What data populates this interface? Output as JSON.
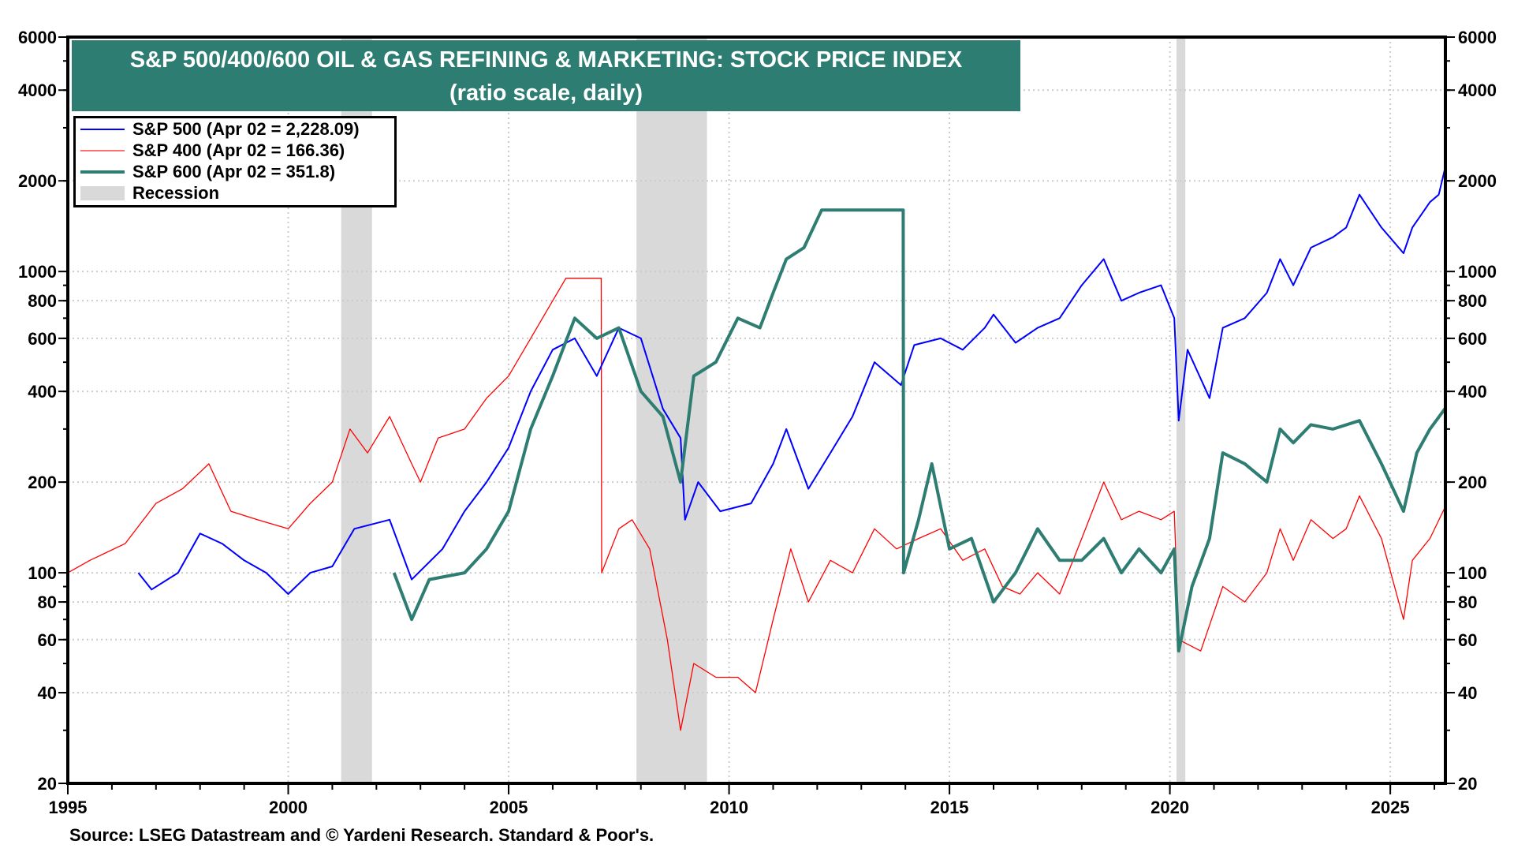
{
  "chart_data": {
    "type": "line",
    "title": "S&P 500/400/600 OIL & GAS REFINING & MARKETING: STOCK PRICE INDEX",
    "subtitle": "(ratio scale, daily)",
    "y_scale": "log",
    "ylim": [
      20,
      6000
    ],
    "xlim": [
      1995,
      2026.25
    ],
    "y_ticks": [
      20,
      40,
      60,
      80,
      100,
      200,
      400,
      600,
      800,
      1000,
      2000,
      4000,
      6000
    ],
    "x_ticks": [
      1995,
      2000,
      2005,
      2010,
      2015,
      2020,
      2025
    ],
    "grid": true,
    "legend_position": "top-left",
    "recessions": [
      [
        2001.2,
        2001.9
      ],
      [
        2007.9,
        2009.5
      ],
      [
        2020.15,
        2020.35
      ]
    ],
    "recession_label": "Recession",
    "recession_color": "#d9d9d9",
    "series": [
      {
        "name": "S&P 500 (Apr 02 = 2,228.09)",
        "color": "#0000ff",
        "width": 2,
        "x": [
          1996.6,
          1996.9,
          1997.5,
          1998.0,
          1998.5,
          1999.0,
          1999.5,
          2000.0,
          2000.5,
          2001.0,
          2001.5,
          2002.3,
          2002.8,
          2003.5,
          2004.0,
          2004.5,
          2005.0,
          2005.5,
          2006.0,
          2006.5,
          2007.0,
          2007.5,
          2008.0,
          2008.5,
          2008.9,
          2009.0,
          2009.3,
          2009.8,
          2010.5,
          2011.0,
          2011.3,
          2011.8,
          2012.3,
          2012.8,
          2013.3,
          2013.9,
          2014.2,
          2014.8,
          2015.3,
          2015.8,
          2016.0,
          2016.5,
          2017.0,
          2017.5,
          2018.0,
          2018.5,
          2018.9,
          2019.3,
          2019.8,
          2020.1,
          2020.2,
          2020.4,
          2020.9,
          2021.2,
          2021.7,
          2022.2,
          2022.5,
          2022.8,
          2023.2,
          2023.7,
          2024.0,
          2024.3,
          2024.8,
          2025.3,
          2025.5,
          2025.9,
          2026.1,
          2026.25
        ],
        "values": [
          100,
          88,
          100,
          135,
          125,
          110,
          100,
          85,
          100,
          105,
          140,
          150,
          95,
          120,
          160,
          200,
          260,
          400,
          550,
          600,
          450,
          650,
          600,
          350,
          280,
          150,
          200,
          160,
          170,
          230,
          300,
          190,
          250,
          330,
          500,
          420,
          570,
          600,
          550,
          650,
          720,
          580,
          650,
          700,
          900,
          1100,
          800,
          850,
          900,
          700,
          320,
          550,
          380,
          650,
          700,
          850,
          1100,
          900,
          1200,
          1300,
          1400,
          1800,
          1400,
          1150,
          1400,
          1700,
          1800,
          2228
        ]
      },
      {
        "name": "S&P 400 (Apr 02 = 166.36)",
        "color": "#ff0000",
        "width": 1.3,
        "x": [
          1995.0,
          1995.5,
          1996.3,
          1997.0,
          1997.6,
          1998.2,
          1998.7,
          1999.3,
          2000.0,
          2000.5,
          2001.0,
          2001.4,
          2001.8,
          2002.3,
          2002.8,
          2003.0,
          2003.4,
          2004.0,
          2004.5,
          2005.0,
          2005.5,
          2006.0,
          2006.3,
          2006.7,
          2007.1,
          2007.11,
          2007.5,
          2007.8,
          2008.2,
          2008.6,
          2008.9,
          2009.2,
          2009.7,
          2010.2,
          2010.6,
          2011.0,
          2011.4,
          2011.8,
          2012.3,
          2012.8,
          2013.3,
          2013.8,
          2014.3,
          2014.8,
          2015.3,
          2015.8,
          2016.2,
          2016.6,
          2017.0,
          2017.5,
          2018.0,
          2018.5,
          2018.9,
          2019.3,
          2019.8,
          2020.1,
          2020.2,
          2020.7,
          2021.2,
          2021.7,
          2022.2,
          2022.5,
          2022.8,
          2023.2,
          2023.7,
          2024.0,
          2024.3,
          2024.8,
          2025.3,
          2025.5,
          2025.9,
          2026.25
        ],
        "values": [
          100,
          110,
          125,
          170,
          190,
          230,
          160,
          150,
          140,
          170,
          200,
          300,
          250,
          330,
          230,
          200,
          280,
          300,
          380,
          450,
          600,
          800,
          950,
          950,
          950,
          100,
          140,
          150,
          120,
          60,
          30,
          50,
          45,
          45,
          40,
          70,
          120,
          80,
          110,
          100,
          140,
          120,
          130,
          140,
          110,
          120,
          90,
          85,
          100,
          85,
          130,
          200,
          150,
          160,
          150,
          160,
          60,
          55,
          90,
          80,
          100,
          140,
          110,
          150,
          130,
          140,
          180,
          130,
          70,
          110,
          130,
          166
        ]
      },
      {
        "name": "S&P 600 (Apr 02 = 351.8)",
        "color": "#2e7d72",
        "width": 4,
        "x": [
          2002.4,
          2002.8,
          2003.2,
          2004.0,
          2004.5,
          2005.0,
          2005.5,
          2006.0,
          2006.5,
          2007.0,
          2007.5,
          2008.0,
          2008.5,
          2008.9,
          2009.2,
          2009.7,
          2010.2,
          2010.7,
          2011.0,
          2011.3,
          2011.7,
          2012.1,
          2012.3,
          2013.95,
          2013.96,
          2014.3,
          2014.6,
          2015.0,
          2015.5,
          2016.0,
          2016.5,
          2017.0,
          2017.5,
          2018.0,
          2018.5,
          2018.9,
          2019.3,
          2019.8,
          2020.1,
          2020.2,
          2020.5,
          2020.9,
          2021.2,
          2021.7,
          2022.2,
          2022.5,
          2022.8,
          2023.2,
          2023.7,
          2024.3,
          2024.8,
          2025.3,
          2025.6,
          2025.9,
          2026.25
        ],
        "values": [
          100,
          70,
          95,
          100,
          120,
          160,
          300,
          450,
          700,
          600,
          650,
          400,
          330,
          200,
          450,
          500,
          700,
          650,
          850,
          1100,
          1200,
          1600,
          1600,
          1600,
          100,
          150,
          230,
          120,
          130,
          80,
          100,
          140,
          110,
          110,
          130,
          100,
          120,
          100,
          120,
          55,
          90,
          130,
          250,
          230,
          200,
          300,
          270,
          310,
          300,
          320,
          230,
          160,
          250,
          300,
          352
        ]
      }
    ]
  },
  "source": "Source: LSEG Datastream and © Yardeni Research. Standard & Poor's."
}
